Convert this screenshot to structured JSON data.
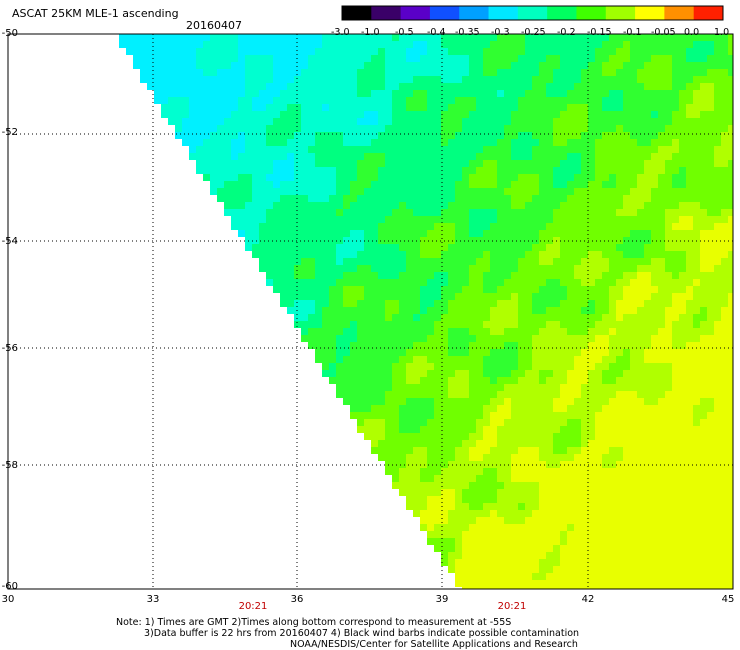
{
  "header": {
    "title": "ASCAT 25KM MLE-1 ascending",
    "date": "20160407"
  },
  "colorbar": {
    "labels": [
      "-3.0",
      "-1.0",
      "-0.5",
      "-0.4",
      "-0.35",
      "-0.3",
      "-0.25",
      "-0.2",
      "-0.15",
      "-0.1",
      "-0.05",
      "0.0",
      "1.0"
    ],
    "colors": [
      "#000000",
      "#3a0068",
      "#5a00c8",
      "#1050ff",
      "#00a0ff",
      "#00e8ff",
      "#00ffc0",
      "#00ff60",
      "#40ff00",
      "#a0ff00",
      "#ffff00",
      "#ff9000",
      "#ff2000"
    ]
  },
  "map": {
    "lat_labels": [
      "-50",
      "-52",
      "-54",
      "-56",
      "-58",
      "-60"
    ],
    "lon_labels": [
      "30",
      "33",
      "36",
      "39",
      "42",
      "45"
    ],
    "time_labels": [
      "20:21",
      "20:21"
    ],
    "lat_range": [
      -60,
      -50
    ],
    "lon_range": [
      30,
      45
    ]
  },
  "footer": {
    "note_line1": "Note: 1) Times are GMT 2)Times along bottom correspond to measurement at -55S",
    "note_line2": "3)Data buffer is 22 hrs from 20160407 4) Black wind barbs indicate possible contamination",
    "credit": "NOAA/NESDIS/Center for Satellite Applications and Research"
  }
}
